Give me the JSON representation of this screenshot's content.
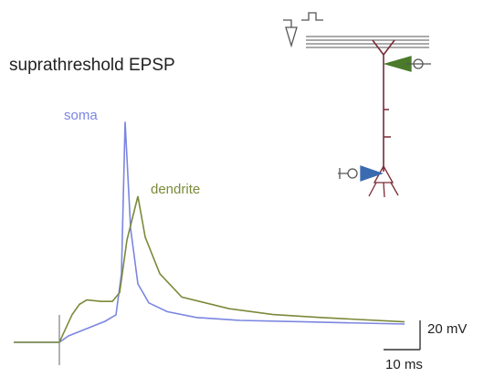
{
  "chart_data": {
    "type": "line",
    "title": "suprathreshold EPSP",
    "series": [
      {
        "name": "soma",
        "color": "#7b86e0",
        "x": [
          0,
          12.5,
          15,
          20,
          25,
          28,
          29.5,
          30.5,
          32,
          34,
          37,
          42,
          50,
          62,
          80,
          107
        ],
        "values": [
          0,
          0,
          4.4,
          9.4,
          14.4,
          18.8,
          47,
          151,
          78,
          40,
          27,
          21,
          17,
          15,
          14,
          12.5
        ]
      },
      {
        "name": "dendrite",
        "color": "#7a8a3a",
        "x": [
          0,
          12.5,
          16,
          18,
          20,
          24,
          27,
          29,
          31,
          34,
          36,
          40,
          46,
          59,
          71,
          84,
          107
        ],
        "values": [
          0,
          0,
          19,
          26,
          29,
          28,
          28,
          34,
          70,
          100,
          72,
          47,
          31,
          23,
          19,
          17,
          14
        ]
      }
    ],
    "xlim": [
      0,
      108
    ],
    "ylim": [
      -10,
      175
    ],
    "scale_bars": [
      {
        "value": 20,
        "label": "20 mV"
      },
      {
        "value": 10,
        "label": "10 ms"
      }
    ]
  }
}
